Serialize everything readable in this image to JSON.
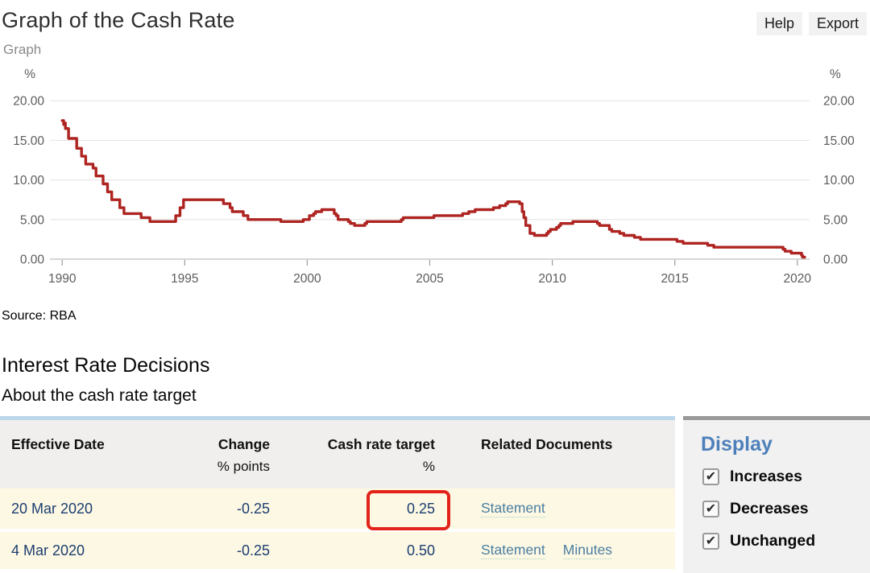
{
  "header": {
    "title": "Graph of the Cash Rate",
    "help_label": "Help",
    "export_label": "Export"
  },
  "graph_section": {
    "label": "Graph",
    "source": "Source: RBA"
  },
  "chart_data": {
    "type": "line",
    "title": "Graph of the Cash Rate",
    "ylabel_left": "%",
    "ylabel_right": "%",
    "line_color": "#ae2421",
    "grid": true,
    "xlim": [
      1989.5,
      2020.5
    ],
    "ylim": [
      0,
      21.55
    ],
    "x_ticks": [
      {
        "v": 1990,
        "label": "1990"
      },
      {
        "v": 1995,
        "label": "1995"
      },
      {
        "v": 2000,
        "label": "2000"
      },
      {
        "v": 2005,
        "label": "2005"
      },
      {
        "v": 2010,
        "label": "2010"
      },
      {
        "v": 2015,
        "label": "2015"
      },
      {
        "v": 2020,
        "label": "2020"
      }
    ],
    "y_ticks": [
      {
        "v": 0,
        "label": "0.00"
      },
      {
        "v": 5,
        "label": "5.00"
      },
      {
        "v": 10,
        "label": "10.00"
      },
      {
        "v": 15,
        "label": "15.00"
      },
      {
        "v": 20,
        "label": "20.00"
      }
    ],
    "series": [
      {
        "name": "Cash rate target (%)",
        "step": "after",
        "points": [
          [
            1990.0,
            17.5
          ],
          [
            1990.06,
            17.0
          ],
          [
            1990.1,
            17.2
          ],
          [
            1990.13,
            16.5
          ],
          [
            1990.26,
            15.25
          ],
          [
            1990.59,
            14.0
          ],
          [
            1990.79,
            13.0
          ],
          [
            1990.96,
            12.0
          ],
          [
            1991.26,
            11.5
          ],
          [
            1991.38,
            10.5
          ],
          [
            1991.67,
            9.5
          ],
          [
            1991.85,
            8.5
          ],
          [
            1992.02,
            7.5
          ],
          [
            1992.35,
            6.5
          ],
          [
            1992.52,
            5.75
          ],
          [
            1993.22,
            5.25
          ],
          [
            1993.58,
            4.75
          ],
          [
            1994.63,
            5.5
          ],
          [
            1994.81,
            6.5
          ],
          [
            1994.95,
            7.5
          ],
          [
            1996.58,
            7.0
          ],
          [
            1996.85,
            6.5
          ],
          [
            1996.94,
            6.0
          ],
          [
            1997.39,
            5.5
          ],
          [
            1997.58,
            5.0
          ],
          [
            1998.92,
            4.75
          ],
          [
            1999.84,
            5.0
          ],
          [
            2000.09,
            5.5
          ],
          [
            2000.26,
            5.75
          ],
          [
            2000.34,
            6.0
          ],
          [
            2000.59,
            6.25
          ],
          [
            2001.1,
            5.75
          ],
          [
            2001.18,
            5.5
          ],
          [
            2001.26,
            5.0
          ],
          [
            2001.68,
            4.75
          ],
          [
            2001.76,
            4.5
          ],
          [
            2001.93,
            4.25
          ],
          [
            2002.35,
            4.5
          ],
          [
            2002.43,
            4.75
          ],
          [
            2003.84,
            5.0
          ],
          [
            2003.92,
            5.25
          ],
          [
            2005.17,
            5.5
          ],
          [
            2006.34,
            5.75
          ],
          [
            2006.59,
            6.0
          ],
          [
            2006.85,
            6.25
          ],
          [
            2007.6,
            6.5
          ],
          [
            2007.85,
            6.75
          ],
          [
            2008.1,
            7.0
          ],
          [
            2008.18,
            7.25
          ],
          [
            2008.67,
            7.0
          ],
          [
            2008.77,
            6.0
          ],
          [
            2008.84,
            5.25
          ],
          [
            2008.92,
            4.25
          ],
          [
            2009.09,
            3.25
          ],
          [
            2009.27,
            3.0
          ],
          [
            2009.77,
            3.25
          ],
          [
            2009.84,
            3.5
          ],
          [
            2009.92,
            3.75
          ],
          [
            2010.17,
            4.0
          ],
          [
            2010.27,
            4.25
          ],
          [
            2010.34,
            4.5
          ],
          [
            2010.84,
            4.75
          ],
          [
            2011.84,
            4.5
          ],
          [
            2011.93,
            4.25
          ],
          [
            2012.33,
            3.75
          ],
          [
            2012.43,
            3.5
          ],
          [
            2012.75,
            3.25
          ],
          [
            2012.92,
            3.0
          ],
          [
            2013.35,
            2.75
          ],
          [
            2013.6,
            2.5
          ],
          [
            2015.09,
            2.25
          ],
          [
            2015.34,
            2.0
          ],
          [
            2016.34,
            1.75
          ],
          [
            2016.59,
            1.5
          ],
          [
            2019.42,
            1.25
          ],
          [
            2019.5,
            1.0
          ],
          [
            2019.75,
            0.75
          ],
          [
            2020.17,
            0.5
          ],
          [
            2020.21,
            0.25
          ],
          [
            2020.3,
            0.25
          ]
        ]
      }
    ]
  },
  "decisions": {
    "heading": "Interest Rate Decisions",
    "subheading": "About the cash rate target",
    "table": {
      "columns": [
        {
          "label": "Effective Date",
          "sub": ""
        },
        {
          "label": "Change",
          "sub": "% points"
        },
        {
          "label": "Cash rate target",
          "sub": "%"
        },
        {
          "label": "Related Documents",
          "sub": ""
        }
      ],
      "rows": [
        {
          "date": "20 Mar 2020",
          "change": "-0.25",
          "target": "0.25",
          "links": {
            "0": "Statement"
          },
          "target_highlighted": true
        },
        {
          "date": "4 Mar 2020",
          "change": "-0.25",
          "target": "0.50",
          "links": {
            "0": "Statement",
            "1": "Minutes"
          },
          "target_highlighted": false
        }
      ]
    }
  },
  "display_panel": {
    "heading": "Display",
    "options": [
      {
        "label": "Increases",
        "checked": true
      },
      {
        "label": "Decreases",
        "checked": true
      },
      {
        "label": "Unchanged",
        "checked": true
      }
    ]
  },
  "colors": {
    "line": "#ae2421",
    "highlight_box": "#e2231a",
    "table_top_border": "#bdd7ea",
    "row_background": "#fdf8e3",
    "link": "#4a7ea3",
    "navy_text": "#1b3d70",
    "display_heading": "#4d80ba"
  }
}
